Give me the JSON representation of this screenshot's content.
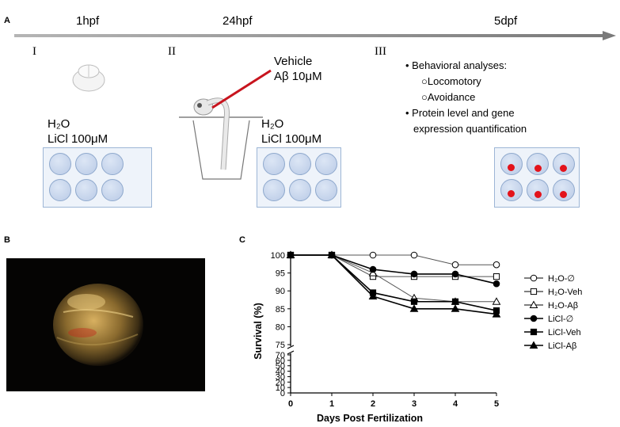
{
  "panels": {
    "a": "A",
    "b": "B",
    "c": "C"
  },
  "timeline": {
    "timepoints": [
      "1hpf",
      "24hpf",
      "5dpf"
    ],
    "stages": [
      "I",
      "II",
      "III"
    ]
  },
  "injection": {
    "line1": "Vehicle",
    "line2": "Aβ 10μM"
  },
  "treatment1": {
    "line1": "H₂O",
    "line2": "LiCl 100μM"
  },
  "treatment2": {
    "line1": "H₂O",
    "line2": "LiCl 100μM"
  },
  "analyses": {
    "item1": "Behavioral analyses:",
    "sub1": "Locomotory",
    "sub2": "Avoidance",
    "item2_line1": "Protein level and gene",
    "item2_line2": "expression quantification"
  },
  "colors": {
    "arrow": "#909090",
    "well": "#b9cae6",
    "dot": "#e3131b",
    "needle": "#c8141e"
  },
  "chart_data": {
    "type": "line",
    "xlabel": "Days Post Fertilization",
    "ylabel": "Survival (%)",
    "x": [
      0,
      1,
      2,
      3,
      4,
      5
    ],
    "xticks": [
      "0",
      "1",
      "2",
      "3",
      "4",
      "5"
    ],
    "yticks_upper": [
      "75",
      "80",
      "85",
      "90",
      "95",
      "100"
    ],
    "yticks_lower": [
      "0",
      "10",
      "20",
      "30",
      "40",
      "50",
      "60",
      "70"
    ],
    "axis_break": [
      70,
      75
    ],
    "xlim": [
      0,
      5
    ],
    "legend_position": "right",
    "series": [
      {
        "name": "H₂O-∅",
        "marker": "open-circle",
        "values": [
          100,
          100,
          100,
          100,
          97.3,
          97.3
        ]
      },
      {
        "name": "H₂O-Veh",
        "marker": "open-square",
        "values": [
          100,
          100,
          94,
          94,
          94,
          94
        ]
      },
      {
        "name": "H₂O-Aβ",
        "marker": "open-triangle",
        "values": [
          100,
          100,
          95,
          88,
          87,
          87
        ]
      },
      {
        "name": "LiCl-∅",
        "marker": "filled-circle",
        "values": [
          100,
          100,
          96,
          94.7,
          94.7,
          92
        ]
      },
      {
        "name": "LiCl-Veh",
        "marker": "filled-square",
        "values": [
          100,
          100,
          89.5,
          87,
          87,
          84.5
        ]
      },
      {
        "name": "LiCl-Aβ",
        "marker": "filled-triangle",
        "values": [
          100,
          100,
          88.5,
          85,
          85,
          83.5
        ]
      }
    ]
  }
}
